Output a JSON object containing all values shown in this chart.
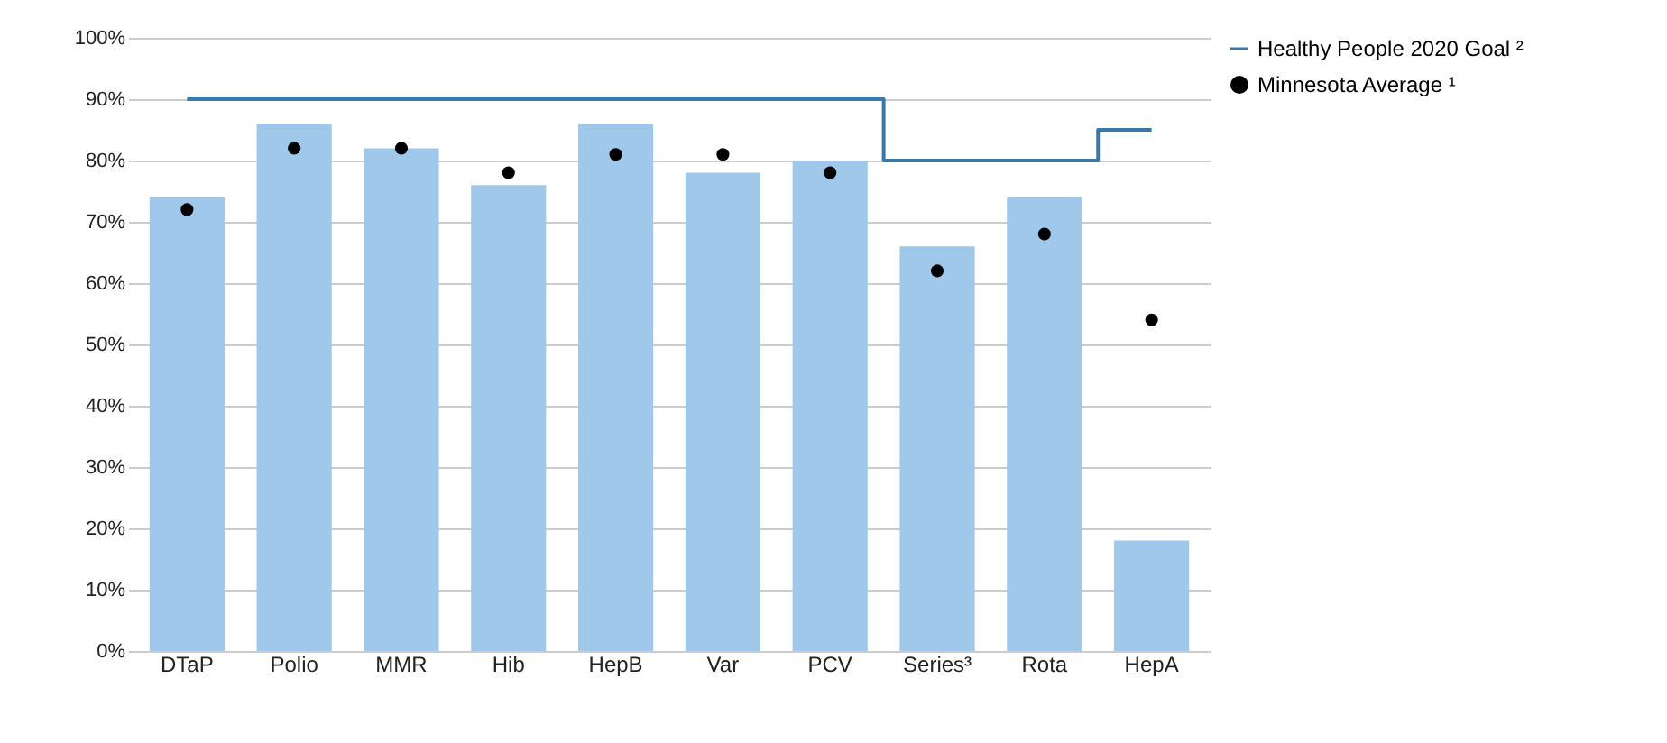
{
  "chart_data": {
    "type": "bar",
    "categories": [
      "DTaP",
      "Polio",
      "MMR",
      "Hib",
      "HepB",
      "Var",
      "PCV",
      "Series³",
      "Rota",
      "HepA"
    ],
    "series": [
      {
        "color": "#9fc8ea",
        "values": [
          74,
          86,
          82,
          76,
          86,
          78,
          80,
          66,
          74,
          18
        ]
      },
      {
        "type": "scatter",
        "name": "Minnesota Average ¹",
        "color": "#000000",
        "marker": "circle",
        "values": [
          72,
          82,
          82,
          78,
          81,
          81,
          78,
          62,
          68,
          54
        ]
      },
      {
        "type": "step",
        "name": "Healthy People 2020 Goal ²",
        "color": "#3a78a8",
        "values": [
          90,
          90,
          90,
          90,
          90,
          90,
          90,
          80,
          80,
          85
        ]
      }
    ],
    "ylim": [
      0,
      100
    ],
    "yticks": [
      {
        "value": 0,
        "label": "0%"
      },
      {
        "value": 10,
        "label": "10%"
      },
      {
        "value": 20,
        "label": "20%"
      },
      {
        "value": 30,
        "label": "30%"
      },
      {
        "value": 40,
        "label": "40%"
      },
      {
        "value": 50,
        "label": "50%"
      },
      {
        "value": 60,
        "label": "60%"
      },
      {
        "value": 70,
        "label": "70%"
      },
      {
        "value": 80,
        "label": "80%"
      },
      {
        "value": 90,
        "label": "90%"
      },
      {
        "value": 100,
        "label": "100%"
      }
    ],
    "grid": "y",
    "legend": "top right"
  }
}
